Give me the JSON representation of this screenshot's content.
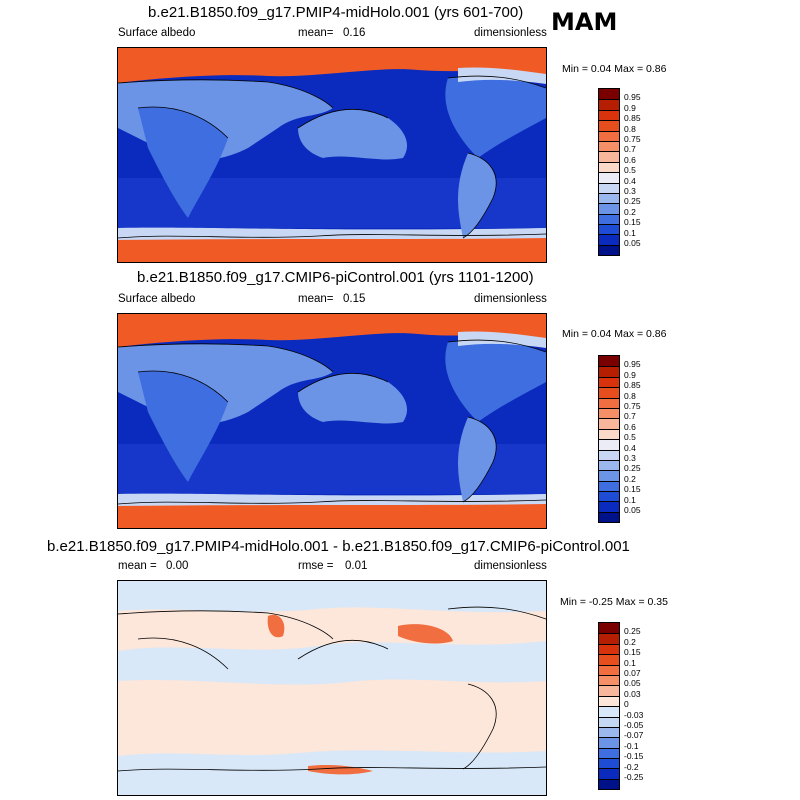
{
  "season": "MAM",
  "panels": [
    {
      "title": "b.e21.B1850.f09_g17.PMIP4-midHolo.001 (yrs 601-700)",
      "variable": "Surface albedo",
      "stat_label": "mean=",
      "stat_value": "0.16",
      "units": "dimensionless",
      "minmax": "Min =  0.04 Max =   0.86"
    },
    {
      "title": "b.e21.B1850.f09_g17.CMIP6-piControl.001 (yrs 1101-1200)",
      "variable": "Surface albedo",
      "stat_label": "mean=",
      "stat_value": "0.15",
      "units": "dimensionless",
      "minmax": "Min =  0.04 Max =   0.86"
    },
    {
      "title": "b.e21.B1850.f09_g17.PMIP4-midHolo.001 - b.e21.B1850.f09_g17.CMIP6-piControl.001",
      "mean_label": "mean =",
      "mean_value": "0.00",
      "rmse_label": "rmse =",
      "rmse_value": "0.01",
      "units": "dimensionless",
      "minmax": "Min =  -0.25 Max =   0.35"
    }
  ],
  "colorbar_abs": {
    "labels": [
      "0.95",
      "0.9",
      "0.85",
      "0.8",
      "0.75",
      "0.7",
      "0.6",
      "0.5",
      "0.4",
      "0.3",
      "0.25",
      "0.2",
      "0.15",
      "0.1",
      "0.05"
    ],
    "colors": [
      "#7a0000",
      "#b51e00",
      "#d8330c",
      "#e64e1e",
      "#f06e40",
      "#f48f68",
      "#f8b69a",
      "#fbd9c9",
      "#ececf6",
      "#c8d8f4",
      "#9ab8ee",
      "#6b93e6",
      "#3f6ee0",
      "#1f4cd4",
      "#0a2bbe",
      "#00128a"
    ]
  },
  "colorbar_diff": {
    "labels": [
      "0.25",
      "0.2",
      "0.15",
      "0.1",
      "0.07",
      "0.05",
      "0.03",
      "0",
      "-0.03",
      "-0.05",
      "-0.07",
      "-0.1",
      "-0.15",
      "-0.2",
      "-0.25"
    ],
    "colors": [
      "#7a0000",
      "#b51e00",
      "#d8330c",
      "#e64e1e",
      "#f06e40",
      "#f48f68",
      "#f8b69a",
      "#fde6da",
      "#d8e8f8",
      "#c4d8f4",
      "#9ab8ee",
      "#6b93e6",
      "#3f6ee0",
      "#1f4cd4",
      "#0a2bbe",
      "#00128a"
    ]
  },
  "map_colors": {
    "ocean": "#0a2bbe",
    "ocean_deep": "#1637c9",
    "sea_ice": "#f05a24",
    "snow": "#e64e1e",
    "land_mid": "#6b93e6",
    "land_low": "#3f6ee0",
    "land_pale": "#c8d8f4",
    "diff_pos": "#fde6da",
    "diff_neg": "#d8e8f8",
    "diff_hot": "#f06e40"
  }
}
